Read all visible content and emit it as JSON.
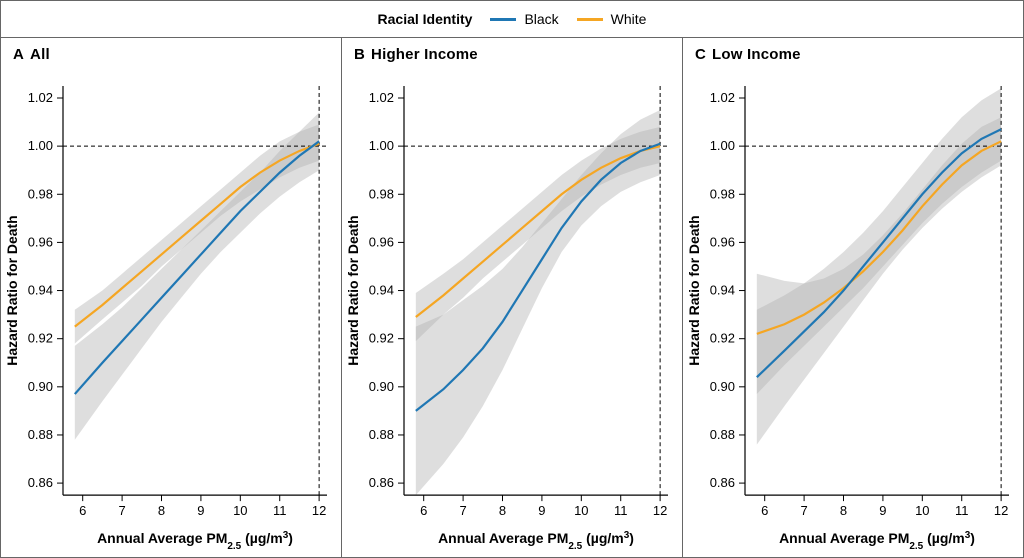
{
  "legend": {
    "title": "Racial Identity",
    "series": [
      {
        "key": "black",
        "label": "Black",
        "color": "#1f77b4"
      },
      {
        "key": "white",
        "label": "White",
        "color": "#f5a623"
      }
    ]
  },
  "common": {
    "x_label_html": "Annual Average PM<tspan baseline-shift='sub' font-size='10'>2.5</tspan> (µg/m<tspan baseline-shift='super' font-size='10'>3</tspan>)",
    "y_label": "Hazard Ratio for Death",
    "xlim": [
      5.5,
      12.2
    ],
    "ylim": [
      0.855,
      1.025
    ],
    "x_ticks": [
      6,
      7,
      8,
      9,
      10,
      11,
      12
    ],
    "y_ticks": [
      0.86,
      0.88,
      0.9,
      0.92,
      0.94,
      0.96,
      0.98,
      1.0,
      1.02
    ],
    "reference_y": 1.0,
    "reference_x": 12,
    "ci_color": "#b0b0b0",
    "ci_opacity": 0.42,
    "axis_color": "#000000",
    "tick_fontsize": 13,
    "label_fontsize": 14,
    "line_width": 2.2,
    "panel_aspect": "1:1.35"
  },
  "panels": [
    {
      "letter": "A",
      "title": "All",
      "series": {
        "black": {
          "x": [
            5.8,
            6.5,
            7.0,
            7.5,
            8.0,
            8.5,
            9.0,
            9.5,
            10.0,
            10.5,
            11.0,
            11.5,
            12.0
          ],
          "y": [
            0.897,
            0.91,
            0.919,
            0.928,
            0.937,
            0.946,
            0.955,
            0.964,
            0.973,
            0.981,
            0.989,
            0.996,
            1.002
          ],
          "lo": [
            0.878,
            0.894,
            0.905,
            0.916,
            0.927,
            0.937,
            0.947,
            0.956,
            0.964,
            0.972,
            0.979,
            0.985,
            0.99
          ],
          "hi": [
            0.917,
            0.926,
            0.933,
            0.941,
            0.949,
            0.957,
            0.965,
            0.973,
            0.981,
            0.989,
            0.998,
            1.006,
            1.014
          ]
        },
        "white": {
          "x": [
            5.8,
            6.5,
            7.0,
            7.5,
            8.0,
            8.5,
            9.0,
            9.5,
            10.0,
            10.5,
            11.0,
            11.5,
            12.0
          ],
          "y": [
            0.925,
            0.934,
            0.941,
            0.948,
            0.955,
            0.962,
            0.969,
            0.976,
            0.983,
            0.989,
            0.994,
            0.998,
            1.001
          ],
          "lo": [
            0.918,
            0.928,
            0.935,
            0.942,
            0.95,
            0.957,
            0.964,
            0.971,
            0.977,
            0.982,
            0.987,
            0.991,
            0.994
          ],
          "hi": [
            0.932,
            0.94,
            0.947,
            0.954,
            0.961,
            0.968,
            0.975,
            0.982,
            0.989,
            0.996,
            1.002,
            1.006,
            1.009
          ]
        }
      }
    },
    {
      "letter": "B",
      "title": "Higher Income",
      "series": {
        "black": {
          "x": [
            5.8,
            6.5,
            7.0,
            7.5,
            8.0,
            8.5,
            9.0,
            9.5,
            10.0,
            10.5,
            11.0,
            11.5,
            12.0
          ],
          "y": [
            0.89,
            0.899,
            0.907,
            0.916,
            0.927,
            0.94,
            0.953,
            0.966,
            0.977,
            0.986,
            0.993,
            0.998,
            1.001
          ],
          "lo": [
            0.855,
            0.868,
            0.879,
            0.892,
            0.907,
            0.924,
            0.941,
            0.956,
            0.967,
            0.975,
            0.981,
            0.985,
            0.988
          ],
          "hi": [
            0.925,
            0.93,
            0.936,
            0.942,
            0.949,
            0.958,
            0.968,
            0.978,
            0.988,
            0.997,
            1.005,
            1.011,
            1.015
          ]
        },
        "white": {
          "x": [
            5.8,
            6.5,
            7.0,
            7.5,
            8.0,
            8.5,
            9.0,
            9.5,
            10.0,
            10.5,
            11.0,
            11.5,
            12.0
          ],
          "y": [
            0.929,
            0.938,
            0.945,
            0.952,
            0.959,
            0.966,
            0.973,
            0.98,
            0.986,
            0.991,
            0.995,
            0.998,
            1.0
          ],
          "lo": [
            0.919,
            0.93,
            0.937,
            0.945,
            0.952,
            0.959,
            0.966,
            0.973,
            0.979,
            0.984,
            0.988,
            0.991,
            0.993
          ],
          "hi": [
            0.939,
            0.947,
            0.953,
            0.96,
            0.967,
            0.974,
            0.981,
            0.988,
            0.994,
            0.999,
            1.003,
            1.006,
            1.008
          ]
        }
      }
    },
    {
      "letter": "C",
      "title": "Low Income",
      "series": {
        "black": {
          "x": [
            5.8,
            6.5,
            7.0,
            7.5,
            8.0,
            8.5,
            9.0,
            9.5,
            10.0,
            10.5,
            11.0,
            11.5,
            12.0
          ],
          "y": [
            0.904,
            0.915,
            0.923,
            0.931,
            0.94,
            0.95,
            0.96,
            0.97,
            0.98,
            0.989,
            0.997,
            1.003,
            1.007
          ],
          "lo": [
            0.876,
            0.892,
            0.903,
            0.914,
            0.925,
            0.936,
            0.947,
            0.957,
            0.966,
            0.974,
            0.981,
            0.987,
            0.992
          ],
          "hi": [
            0.932,
            0.938,
            0.943,
            0.949,
            0.956,
            0.964,
            0.973,
            0.983,
            0.993,
            1.003,
            1.012,
            1.019,
            1.024
          ]
        },
        "white": {
          "x": [
            5.8,
            6.5,
            7.0,
            7.5,
            8.0,
            8.5,
            9.0,
            9.5,
            10.0,
            10.5,
            11.0,
            11.5,
            12.0
          ],
          "y": [
            0.922,
            0.926,
            0.93,
            0.935,
            0.941,
            0.948,
            0.956,
            0.965,
            0.975,
            0.984,
            0.992,
            0.998,
            1.002
          ],
          "lo": [
            0.897,
            0.909,
            0.917,
            0.925,
            0.933,
            0.941,
            0.95,
            0.959,
            0.968,
            0.976,
            0.983,
            0.989,
            0.994
          ],
          "hi": [
            0.947,
            0.944,
            0.943,
            0.945,
            0.949,
            0.955,
            0.963,
            0.972,
            0.982,
            0.992,
            1.001,
            1.008,
            1.012
          ]
        }
      }
    }
  ]
}
